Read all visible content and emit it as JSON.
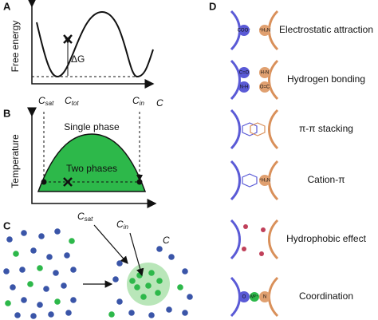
{
  "panel_a": {
    "label": "A",
    "y_axis": "Free energy",
    "delta": "ΔG",
    "c_sat": {
      "main": "C",
      "sub": "sat"
    },
    "c_tot": {
      "main": "C",
      "sub": "tot"
    },
    "c_in": {
      "main": "C",
      "sub": "in"
    },
    "x_axis": "C"
  },
  "panel_b": {
    "label": "B",
    "y_axis": "Temperature",
    "upper": "Single phase",
    "lower": "Two phases"
  },
  "panel_c": {
    "label": "C",
    "c_sat": {
      "main": "C",
      "sub": "sat"
    },
    "c_in": {
      "main": "C",
      "sub": "in"
    },
    "droplet": "C"
  },
  "panel_d": {
    "label": "D",
    "interactions": [
      {
        "name": "Electrostatic attraction",
        "left": "COO⁻",
        "right": "⁺H₃N"
      },
      {
        "name": "Hydrogen bonding",
        "left": "C=O",
        "right": "H-N",
        "left2": "N-H",
        "right2": "O=C"
      },
      {
        "name": "π-π stacking"
      },
      {
        "name": "Cation-π",
        "right": "⁺H₃N"
      },
      {
        "name": "Hydrophobic effect"
      },
      {
        "name": "Coordination",
        "left": "O",
        "right": "N",
        "center": "M²⁺"
      }
    ]
  }
}
